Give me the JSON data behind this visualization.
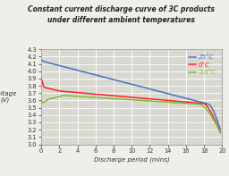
{
  "title_line1": "Constant current discharge curve of 3C products",
  "title_line2": "under different ambient temperatures",
  "xlabel": "Discharge period (mins)",
  "ylabel": "Voltage\n(V)",
  "xlim": [
    0,
    20
  ],
  "ylim": [
    3.0,
    4.3
  ],
  "yticks": [
    3.0,
    3.1,
    3.2,
    3.3,
    3.4,
    3.5,
    3.6,
    3.7,
    3.8,
    3.9,
    4.0,
    4.1,
    4.2,
    4.3
  ],
  "xticks": [
    0,
    2,
    4,
    6,
    8,
    10,
    12,
    14,
    16,
    18,
    20
  ],
  "legend": [
    "25°C",
    "0°C",
    "-10°C"
  ],
  "colors": [
    "#4472C4",
    "#FF2020",
    "#80BB30"
  ],
  "fig_background": "#F0EEE8",
  "plot_background": "#D8D8D0",
  "grid_color": "#FFFFFF",
  "title_fontsize": 5.5,
  "axis_fontsize": 5.0,
  "tick_fontsize": 4.8,
  "legend_fontsize": 5.0
}
